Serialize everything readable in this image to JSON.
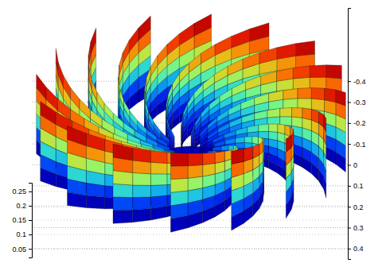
{
  "chart_data": {
    "type": "surface",
    "zlim": [
      0.02,
      0.28
    ],
    "zticks": [
      0.05,
      0.1,
      0.15,
      0.2,
      0.25
    ],
    "ylim": [
      -0.75,
      0.45
    ],
    "yticks": [
      -0.4,
      -0.3,
      -0.2,
      -0.1,
      0,
      0.1,
      0.2,
      0.3,
      0.4
    ],
    "grid": true,
    "blades": {
      "angles": [
        0,
        22.5,
        45,
        67.5,
        90,
        112.5,
        135,
        157.5,
        180,
        202.5,
        225,
        247.5,
        270,
        292.5,
        315,
        337.5
      ],
      "radius": [
        0.06,
        0.4
      ],
      "sweep": 75,
      "height": [
        0.06,
        0.25
      ]
    }
  }
}
